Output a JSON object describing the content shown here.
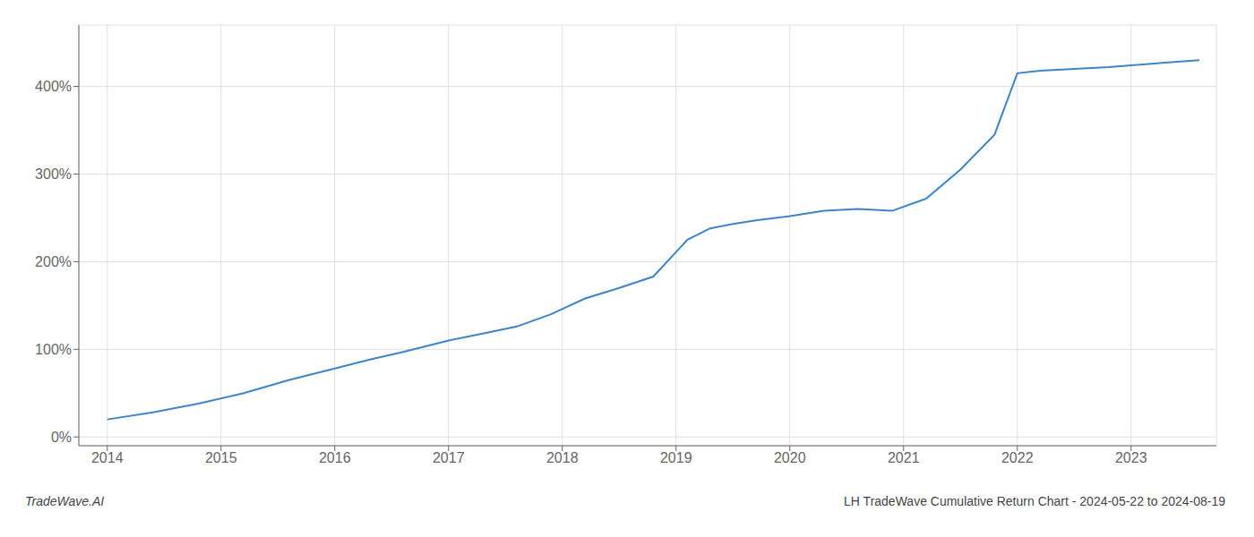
{
  "chart_data": {
    "type": "line",
    "x": [
      2014.0,
      2014.4,
      2014.8,
      2015.2,
      2015.6,
      2016.0,
      2016.3,
      2016.6,
      2017.0,
      2017.3,
      2017.6,
      2017.9,
      2018.2,
      2018.5,
      2018.8,
      2019.1,
      2019.3,
      2019.5,
      2019.7,
      2020.0,
      2020.3,
      2020.6,
      2020.9,
      2021.2,
      2021.5,
      2021.8,
      2022.0,
      2022.2,
      2022.5,
      2022.8,
      2023.0,
      2023.3,
      2023.6
    ],
    "values": [
      20,
      28,
      38,
      50,
      65,
      78,
      88,
      97,
      110,
      118,
      126,
      140,
      158,
      170,
      183,
      225,
      238,
      243,
      247,
      252,
      258,
      260,
      258,
      272,
      305,
      345,
      415,
      418,
      420,
      422,
      424,
      427,
      430
    ],
    "color": "#3d85c8",
    "xlim": [
      2013.75,
      2023.75
    ],
    "ylim": [
      -10,
      470
    ],
    "xticks": [
      2014,
      2015,
      2016,
      2017,
      2018,
      2019,
      2020,
      2021,
      2022,
      2023
    ],
    "yticks": [
      {
        "value": 0,
        "label": "0%"
      },
      {
        "value": 100,
        "label": "100%"
      },
      {
        "value": 200,
        "label": "200%"
      },
      {
        "value": 300,
        "label": "300%"
      },
      {
        "value": 400,
        "label": "400%"
      }
    ],
    "grid": true,
    "annotations": [
      "TradeWave.AI",
      "LH TradeWave Cumulative Return Chart - 2024-05-22 to 2024-08-19"
    ]
  }
}
